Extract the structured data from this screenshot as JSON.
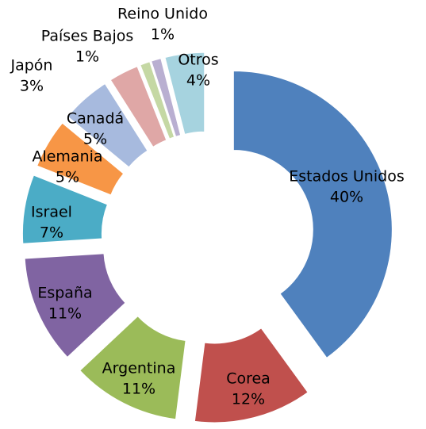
{
  "chart_data": {
    "type": "donut",
    "categories": [
      "Estados Unidos",
      "Corea",
      "Argentina",
      "España",
      "Israel",
      "Alemania",
      "Canadá",
      "Japón",
      "Países Bajos",
      "Reino Unido",
      "Otros"
    ],
    "values": [
      40,
      12,
      11,
      11,
      7,
      5,
      5,
      3,
      1,
      1,
      4
    ],
    "value_labels": [
      "40%",
      "12%",
      "11%",
      "11%",
      "7%",
      "5%",
      "5%",
      "3%",
      "1%",
      "1%",
      "4%"
    ],
    "colors": [
      "#4f81bd",
      "#c0504d",
      "#9bbb59",
      "#8064a2",
      "#4bacc6",
      "#f79646",
      "#a7bade",
      "#dfa7a6",
      "#c5d8a4",
      "#b9afd1",
      "#a6d3df"
    ]
  }
}
